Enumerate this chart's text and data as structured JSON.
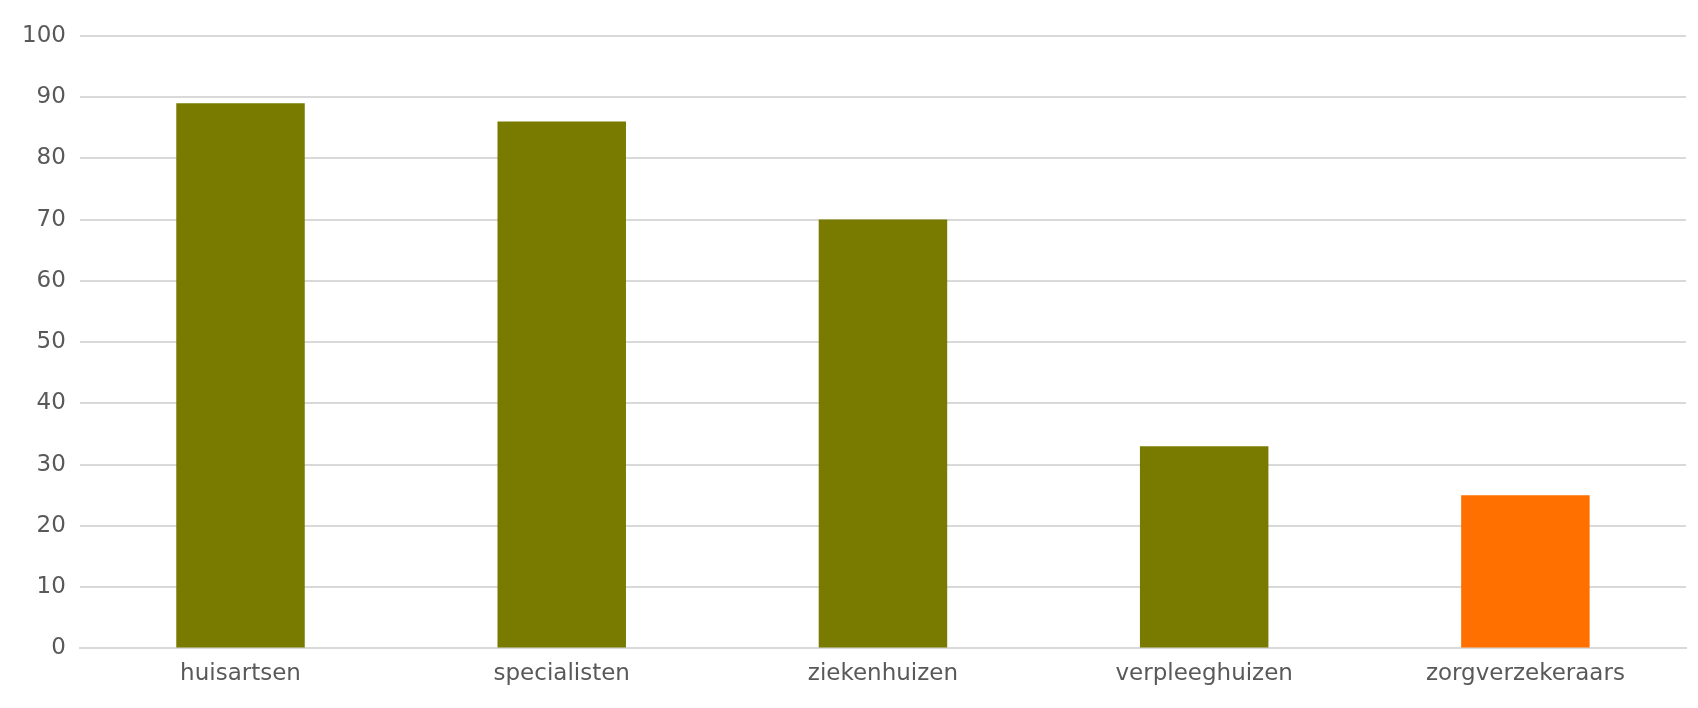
{
  "chart_data": {
    "type": "bar",
    "categories": [
      "huisartsen",
      "specialisten",
      "ziekenhuizen",
      "verpleeghuizen",
      "zorgverzekeraars"
    ],
    "values": [
      89,
      86,
      70,
      33,
      25
    ],
    "colors": [
      "#787b00",
      "#787b00",
      "#787b00",
      "#787b00",
      "#ff7000"
    ],
    "ylim": [
      0,
      100
    ],
    "yticks": [
      0,
      10,
      20,
      30,
      40,
      50,
      60,
      70,
      80,
      90,
      100
    ],
    "grid": "y",
    "legend": false
  }
}
